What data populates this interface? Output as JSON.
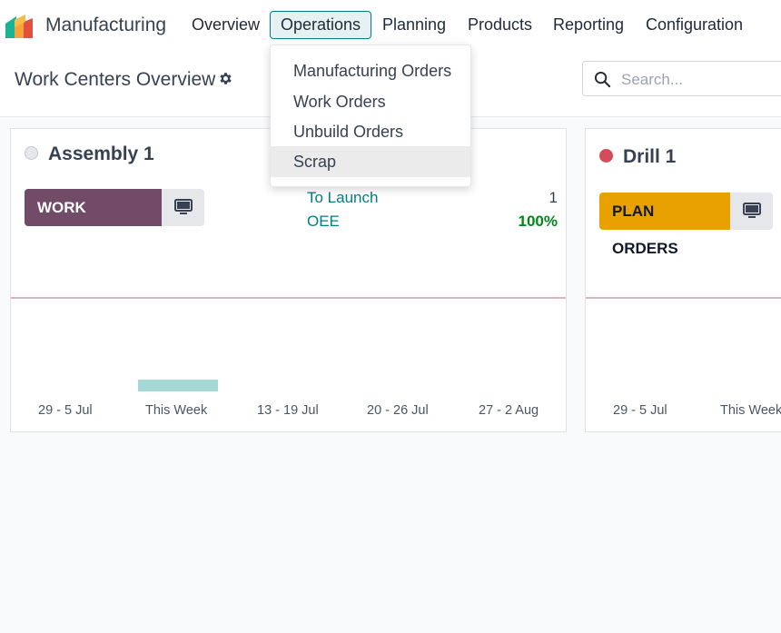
{
  "app": {
    "name": "Manufacturing"
  },
  "menu": {
    "items": [
      {
        "label": "Overview"
      },
      {
        "label": "Operations"
      },
      {
        "label": "Planning"
      },
      {
        "label": "Products"
      },
      {
        "label": "Reporting"
      },
      {
        "label": "Configuration"
      }
    ],
    "active": "Operations"
  },
  "dropdown": {
    "items": [
      {
        "label": "Manufacturing Orders"
      },
      {
        "label": "Work Orders"
      },
      {
        "label": "Unbuild Orders"
      },
      {
        "label": "Scrap"
      }
    ],
    "highlighted": "Scrap"
  },
  "page": {
    "title": "Work Centers Overview"
  },
  "search": {
    "placeholder": "Search..."
  },
  "cards": [
    {
      "title": "Assembly 1",
      "status_color": "#e5e7eb",
      "primary_button": {
        "label": "WORK ORDERS",
        "bg": "#714b67",
        "color": "#ffffff"
      },
      "stats": [
        {
          "label": "To Launch",
          "value": "1"
        },
        {
          "label": "OEE",
          "value": "100%"
        }
      ],
      "weeks": [
        "29 - 5 Jul",
        "This Week",
        "13 - 19 Jul",
        "20 - 26 Jul",
        "27 - 2 Aug"
      ],
      "load": [
        0,
        1,
        0,
        0,
        0
      ]
    },
    {
      "title": "Drill 1",
      "status_color": "#d44c59",
      "primary_button": {
        "label": "PLAN ORDERS",
        "bg": "#e9a100",
        "color": "#111827"
      },
      "weeks": [
        "29 - 5 Jul",
        "This Week"
      ]
    }
  ],
  "colors": {
    "accent": "#017e84",
    "brand": "#714b67",
    "success": "#008818"
  }
}
